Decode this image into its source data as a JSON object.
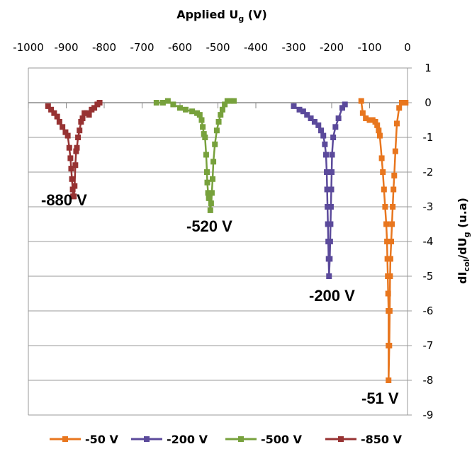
{
  "chart_data": {
    "type": "line",
    "x_axis": {
      "title": "Applied U",
      "title_sub": "g",
      "title_suffix": " (V)",
      "position": "top",
      "range": [
        -1000,
        0
      ],
      "ticks": [
        "-1000",
        "-900",
        "-800",
        "-700",
        "-600",
        "-500",
        "-400",
        "-300",
        "-200",
        "-100",
        "0"
      ]
    },
    "y_axis": {
      "title_parts": [
        "dI",
        "col",
        "/dU",
        "g",
        " (u.a)"
      ],
      "position": "right",
      "range": [
        -9,
        1
      ],
      "ticks": [
        "1",
        "0",
        "-1",
        "-2",
        "-3",
        "-4",
        "-5",
        "-6",
        "-7",
        "-8",
        "-9"
      ]
    },
    "grid": "horizontal",
    "legend_position": "bottom",
    "series": [
      {
        "name": "-50 V",
        "color": "#E8761E",
        "points": [
          [
            -122,
            0.05
          ],
          [
            -118,
            -0.3
          ],
          [
            -110,
            -0.45
          ],
          [
            -100,
            -0.5
          ],
          [
            -92,
            -0.5
          ],
          [
            -85,
            -0.55
          ],
          [
            -80,
            -0.65
          ],
          [
            -76,
            -0.8
          ],
          [
            -73,
            -0.95
          ],
          [
            -68,
            -1.6
          ],
          [
            -65,
            -2.0
          ],
          [
            -62,
            -2.5
          ],
          [
            -59,
            -3.0
          ],
          [
            -56,
            -3.5
          ],
          [
            -54,
            -4.0
          ],
          [
            -53,
            -4.5
          ],
          [
            -52,
            -5.0
          ],
          [
            -51,
            -5.5
          ],
          [
            -50,
            -6.0
          ],
          [
            -50,
            -7.0
          ],
          [
            -50,
            -8.0
          ],
          [
            -48,
            -7.0
          ],
          [
            -47,
            -6.0
          ],
          [
            -46,
            -5.0
          ],
          [
            -45,
            -4.5
          ],
          [
            -43,
            -4.0
          ],
          [
            -41,
            -3.5
          ],
          [
            -39,
            -3.0
          ],
          [
            -37,
            -2.5
          ],
          [
            -35,
            -2.1
          ],
          [
            -32,
            -1.4
          ],
          [
            -28,
            -0.6
          ],
          [
            -22,
            -0.15
          ],
          [
            -15,
            0.0
          ],
          [
            -5,
            0.0
          ]
        ]
      },
      {
        "name": "-200 V",
        "color": "#5B4A9B",
        "points": [
          [
            -300,
            -0.1
          ],
          [
            -285,
            -0.2
          ],
          [
            -275,
            -0.25
          ],
          [
            -265,
            -0.35
          ],
          [
            -255,
            -0.45
          ],
          [
            -245,
            -0.55
          ],
          [
            -235,
            -0.65
          ],
          [
            -228,
            -0.8
          ],
          [
            -222,
            -0.95
          ],
          [
            -218,
            -1.2
          ],
          [
            -215,
            -1.5
          ],
          [
            -213,
            -2.0
          ],
          [
            -212,
            -2.5
          ],
          [
            -211,
            -3.0
          ],
          [
            -210,
            -3.5
          ],
          [
            -209,
            -4.0
          ],
          [
            -208,
            -4.5
          ],
          [
            -207,
            -5.0
          ],
          [
            -205,
            -4.5
          ],
          [
            -204,
            -4.0
          ],
          [
            -203,
            -3.5
          ],
          [
            -202,
            -3.0
          ],
          [
            -201,
            -2.5
          ],
          [
            -200,
            -2.0
          ],
          [
            -199,
            -1.5
          ],
          [
            -196,
            -1.0
          ],
          [
            -190,
            -0.7
          ],
          [
            -182,
            -0.45
          ],
          [
            -172,
            -0.15
          ],
          [
            -165,
            -0.05
          ]
        ]
      },
      {
        "name": "-500 V",
        "color": "#77A13C",
        "points": [
          [
            -662,
            0.0
          ],
          [
            -645,
            0.0
          ],
          [
            -632,
            0.05
          ],
          [
            -618,
            -0.05
          ],
          [
            -600,
            -0.15
          ],
          [
            -585,
            -0.2
          ],
          [
            -568,
            -0.25
          ],
          [
            -555,
            -0.3
          ],
          [
            -548,
            -0.35
          ],
          [
            -543,
            -0.5
          ],
          [
            -540,
            -0.7
          ],
          [
            -537,
            -0.9
          ],
          [
            -534,
            -1.0
          ],
          [
            -531,
            -1.5
          ],
          [
            -529,
            -2.0
          ],
          [
            -528,
            -2.3
          ],
          [
            -526,
            -2.6
          ],
          [
            -524,
            -2.75
          ],
          [
            -522,
            -2.75
          ],
          [
            -520,
            -3.1
          ],
          [
            -518,
            -2.9
          ],
          [
            -516,
            -2.6
          ],
          [
            -514,
            -2.2
          ],
          [
            -512,
            -1.7
          ],
          [
            -508,
            -1.2
          ],
          [
            -503,
            -0.8
          ],
          [
            -498,
            -0.55
          ],
          [
            -493,
            -0.35
          ],
          [
            -488,
            -0.2
          ],
          [
            -482,
            -0.05
          ],
          [
            -475,
            0.05
          ],
          [
            -467,
            0.05
          ],
          [
            -458,
            0.05
          ]
        ]
      },
      {
        "name": "-850 V",
        "color": "#973232",
        "points": [
          [
            -948,
            -0.1
          ],
          [
            -940,
            -0.2
          ],
          [
            -932,
            -0.3
          ],
          [
            -924,
            -0.4
          ],
          [
            -918,
            -0.55
          ],
          [
            -910,
            -0.7
          ],
          [
            -902,
            -0.85
          ],
          [
            -896,
            -0.95
          ],
          [
            -892,
            -1.3
          ],
          [
            -889,
            -1.6
          ],
          [
            -887,
            -1.9
          ],
          [
            -885,
            -2.2
          ],
          [
            -883,
            -2.5
          ],
          [
            -882,
            -2.7
          ],
          [
            -880,
            -2.7
          ],
          [
            -878,
            -2.4
          ],
          [
            -876,
            -1.8
          ],
          [
            -874,
            -1.4
          ],
          [
            -872,
            -1.3
          ],
          [
            -869,
            -1.0
          ],
          [
            -865,
            -0.8
          ],
          [
            -861,
            -0.55
          ],
          [
            -857,
            -0.45
          ],
          [
            -852,
            -0.3
          ],
          [
            -846,
            -0.3
          ],
          [
            -840,
            -0.35
          ],
          [
            -833,
            -0.2
          ],
          [
            -826,
            -0.15
          ],
          [
            -818,
            -0.05
          ],
          [
            -812,
            0.0
          ]
        ]
      }
    ],
    "annotations": [
      "-880 V",
      "-520 V",
      "-200 V",
      "-51 V"
    ],
    "legend": [
      "-50 V",
      "-200 V",
      "-500 V",
      "-850 V"
    ]
  }
}
